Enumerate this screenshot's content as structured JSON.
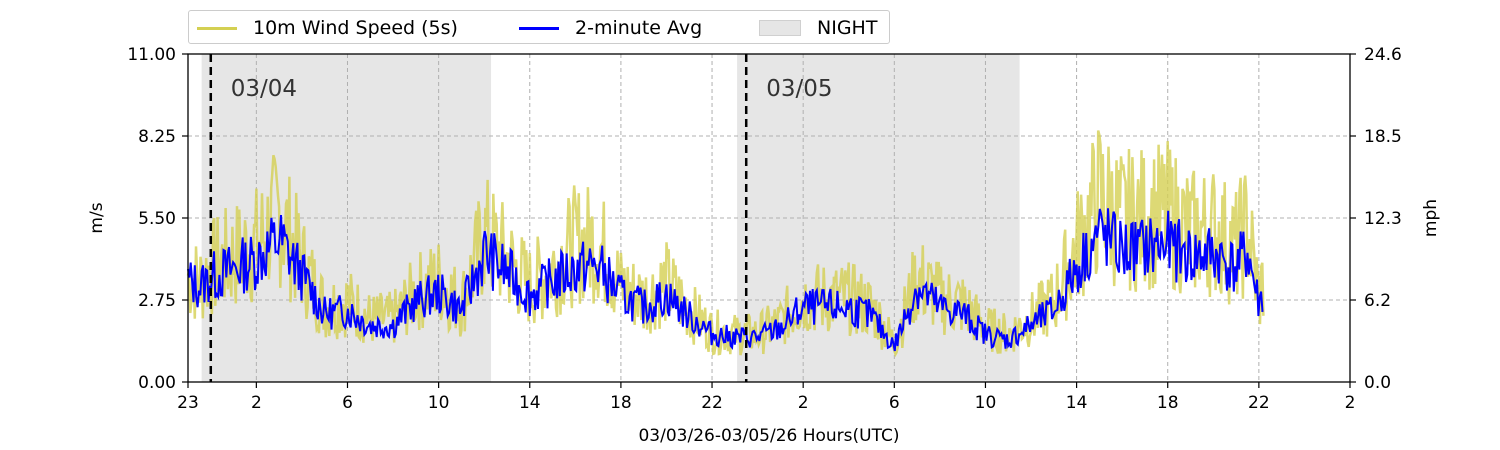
{
  "legend": {
    "series_label": "10m Wind Speed (5s)",
    "avg_label": "2-minute Avg",
    "night_label": "NIGHT"
  },
  "colors": {
    "raw": "#d4d052",
    "avg": "#0000ff",
    "night": "#e6e6e6",
    "grid": "#b0b0b0"
  },
  "chart_data": {
    "type": "line",
    "xlabel": "03/03/26-03/05/26  Hours(UTC)",
    "ylabel": "m/s",
    "ylabel_right": "mph",
    "x_ticks": [
      "23",
      "2",
      "6",
      "10",
      "14",
      "18",
      "22",
      "2",
      "6",
      "10",
      "14",
      "18",
      "22",
      "2"
    ],
    "y_ticks": [
      "0.00",
      "2.75",
      "5.50",
      "8.25",
      "11.00"
    ],
    "y_ticks_right": [
      "0.0",
      "6.2",
      "12.3",
      "18.5",
      "24.6"
    ],
    "ylim": [
      0,
      11
    ],
    "xlim_hours_from_start": [
      0,
      51
    ],
    "grid": true,
    "legend_position": "top-left, above plot",
    "day_markers": [
      {
        "label": "03/04",
        "hour": 1
      },
      {
        "label": "03/05",
        "hour": 24.5
      }
    ],
    "night_periods": [
      [
        0.6,
        13.3
      ],
      [
        24.1,
        36.5
      ]
    ],
    "series": [
      {
        "name": "2-minute Avg",
        "hours": [
          0,
          0.5,
          1,
          2,
          3,
          4,
          5,
          6,
          7,
          8,
          9,
          10,
          11,
          12,
          13,
          14,
          15,
          16,
          17,
          18,
          19,
          20,
          21,
          22,
          23,
          24,
          25,
          26,
          27,
          28,
          29,
          30,
          31,
          32,
          33,
          34,
          35,
          36,
          37,
          38,
          39,
          40,
          41,
          42,
          43,
          44,
          45,
          46,
          46.5,
          47,
          47.2
        ],
        "values": [
          3.4,
          3.2,
          3.5,
          3.8,
          4.1,
          4.8,
          3.6,
          2.3,
          2.4,
          1.9,
          1.9,
          2.7,
          3.0,
          2.4,
          4.3,
          3.7,
          2.9,
          3.4,
          3.8,
          3.9,
          2.9,
          2.5,
          2.9,
          2.2,
          1.6,
          1.5,
          1.5,
          1.8,
          2.5,
          2.5,
          2.5,
          2.2,
          1.2,
          3.2,
          2.5,
          2.3,
          1.6,
          1.4,
          1.9,
          2.4,
          3.8,
          5.0,
          4.4,
          4.5,
          4.6,
          4.2,
          4.3,
          3.8,
          4.4,
          2.6,
          3.0
        ]
      },
      {
        "name": "10m Wind Speed (5s)",
        "hours": [
          0,
          0.5,
          1,
          2,
          3,
          4,
          5,
          6,
          7,
          8,
          9,
          10,
          11,
          12,
          13,
          14,
          15,
          16,
          17,
          18,
          19,
          20,
          21,
          22,
          23,
          24,
          25,
          26,
          27,
          28,
          29,
          30,
          31,
          32,
          33,
          34,
          35,
          36,
          37,
          38,
          39,
          40,
          41,
          42,
          43,
          44,
          45,
          46,
          46.5,
          47,
          47.2
        ],
        "values": [
          3.6,
          3.3,
          3.8,
          4.2,
          4.6,
          5.6,
          4.0,
          2.5,
          2.7,
          2.1,
          2.1,
          3.0,
          3.4,
          2.6,
          4.9,
          4.1,
          3.2,
          3.8,
          4.6,
          4.7,
          3.2,
          2.8,
          3.3,
          2.4,
          1.7,
          1.6,
          1.6,
          2.0,
          2.8,
          2.8,
          2.8,
          2.5,
          1.3,
          3.5,
          2.8,
          2.6,
          1.8,
          1.6,
          2.1,
          2.7,
          4.5,
          6.2,
          5.4,
          5.5,
          5.6,
          5.0,
          5.1,
          4.5,
          5.2,
          2.9,
          3.3
        ]
      }
    ]
  }
}
